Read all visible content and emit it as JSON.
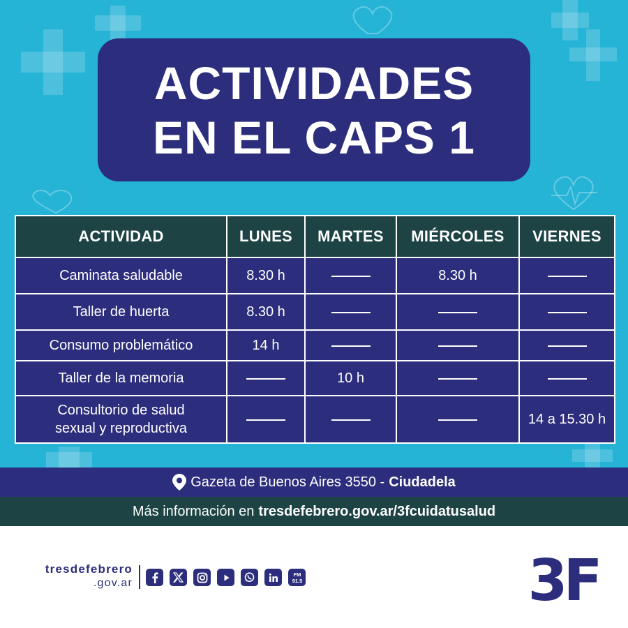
{
  "title": {
    "line1": "ACTIVIDADES",
    "line2": "EN EL CAPS 1"
  },
  "table": {
    "headers": [
      "ACTIVIDAD",
      "LUNES",
      "MARTES",
      "MIÉRCOLES",
      "VIERNES"
    ],
    "rows": [
      {
        "activity": [
          "Caminata saludable"
        ],
        "cells": [
          "8.30 h",
          "",
          "8.30 h",
          ""
        ]
      },
      {
        "activity": [
          "Taller de huerta"
        ],
        "cells": [
          "8.30 h",
          "",
          "",
          ""
        ]
      },
      {
        "activity": [
          "Consumo problemático"
        ],
        "cells": [
          "14 h",
          "",
          "",
          ""
        ]
      },
      {
        "activity": [
          "Taller de la memoria"
        ],
        "cells": [
          "",
          "10 h",
          "",
          ""
        ]
      },
      {
        "activity": [
          "Consultorio de salud",
          "sexual y reproductiva"
        ],
        "cells": [
          "",
          "",
          "",
          "14 a 15.30 h"
        ]
      }
    ]
  },
  "address": {
    "icon": "location-pin-icon",
    "street": "Gazeta de Buenos Aires 3550 - ",
    "city": "Ciudadela"
  },
  "info": {
    "prefix": "Más información en ",
    "url": "tresdefebrero.gov.ar/3fcuidatusalud"
  },
  "footer": {
    "brand_line1": "tresdefebrero",
    "brand_line2": ".gov.ar",
    "socials": [
      "facebook-icon",
      "x-icon",
      "instagram-icon",
      "youtube-icon",
      "whatsapp-icon",
      "linkedin-icon",
      "fm-radio-icon"
    ],
    "radio_top": "FM",
    "radio_bottom": "91.5",
    "logo_text": "3F"
  },
  "colors": {
    "background": "#25b3d6",
    "navy": "#2c2d7c",
    "dark_teal": "#1d4344",
    "white": "#ffffff"
  }
}
